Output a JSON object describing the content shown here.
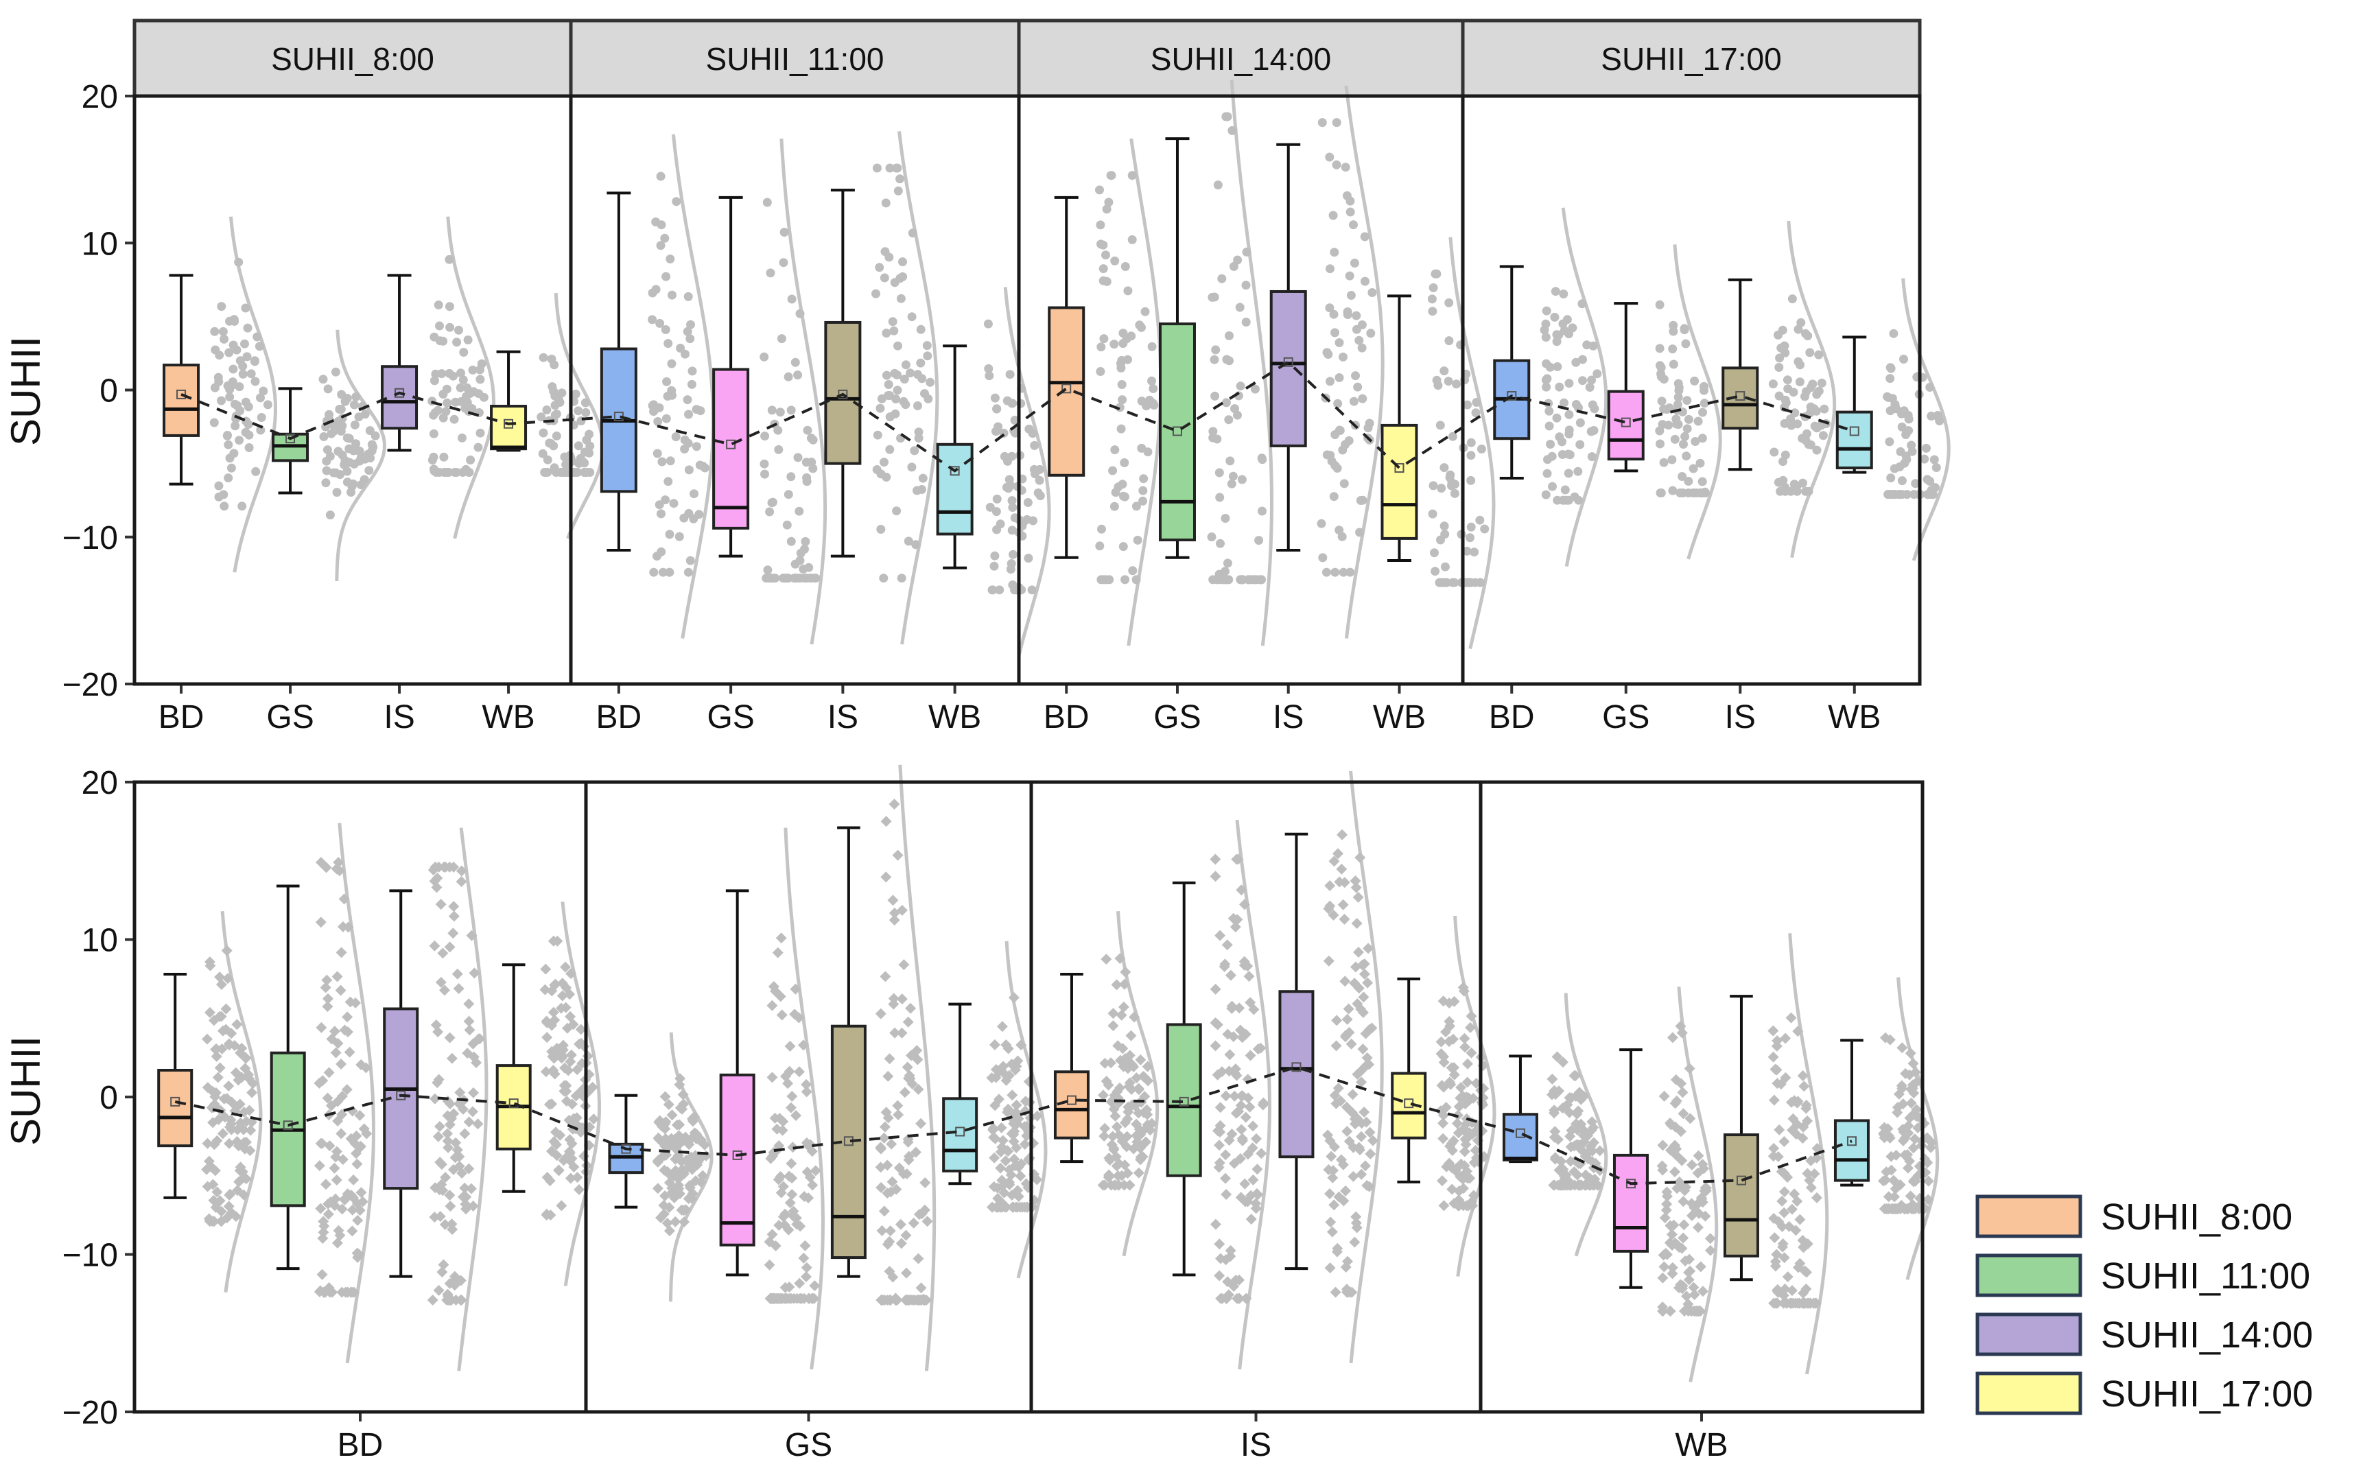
{
  "chart_data": [
    {
      "type": "box",
      "title": "",
      "ylabel": "SUHII",
      "ylim": [
        -20,
        20
      ],
      "yticks": [
        "20",
        "10",
        "0",
        "−10",
        "−20"
      ],
      "ytick_values": [
        20,
        10,
        0,
        -10,
        -20
      ],
      "panels": [
        {
          "label": "SUHII_8:00",
          "categories": [
            "BD",
            "GS",
            "IS",
            "WB"
          ],
          "boxes": [
            {
              "category": "BD",
              "min": -6.4,
              "q1": -3.1,
              "median": -1.3,
              "q3": 1.7,
              "max": 7.8,
              "mean": -0.3,
              "color": "#f9c49a"
            },
            {
              "category": "GS",
              "min": -7.0,
              "q1": -4.8,
              "median": -3.8,
              "q3": -3.0,
              "max": 0.1,
              "mean": -3.3,
              "color": "#98d598"
            },
            {
              "category": "IS",
              "min": -4.1,
              "q1": -2.6,
              "median": -0.8,
              "q3": 1.6,
              "max": 7.8,
              "mean": -0.2,
              "color": "#b4a5d6"
            },
            {
              "category": "WB",
              "min": -4.1,
              "q1": -4.0,
              "median": -3.9,
              "q3": -1.1,
              "max": 2.6,
              "mean": -2.3,
              "color": "#fffa9a"
            }
          ]
        },
        {
          "label": "SUHII_11:00",
          "categories": [
            "BD",
            "GS",
            "IS",
            "WB"
          ],
          "boxes": [
            {
              "category": "BD",
              "min": -10.9,
              "q1": -6.9,
              "median": -2.1,
              "q3": 2.8,
              "max": 13.4,
              "mean": -1.8,
              "color": "#8ab2ee"
            },
            {
              "category": "GS",
              "min": -11.3,
              "q1": -9.4,
              "median": -8.0,
              "q3": 1.4,
              "max": 13.1,
              "mean": -3.7,
              "color": "#f9a5f4"
            },
            {
              "category": "IS",
              "min": -11.3,
              "q1": -5.0,
              "median": -0.6,
              "q3": 4.6,
              "max": 13.6,
              "mean": -0.3,
              "color": "#b7b08a"
            },
            {
              "category": "WB",
              "min": -12.1,
              "q1": -9.8,
              "median": -8.3,
              "q3": -3.7,
              "max": 3.0,
              "mean": -5.5,
              "color": "#a8e3ea"
            }
          ]
        },
        {
          "label": "SUHII_14:00",
          "categories": [
            "BD",
            "GS",
            "IS",
            "WB"
          ],
          "boxes": [
            {
              "category": "BD",
              "min": -11.4,
              "q1": -5.8,
              "median": 0.5,
              "q3": 5.6,
              "max": 13.1,
              "mean": 0.1,
              "color": "#f9c49a"
            },
            {
              "category": "GS",
              "min": -11.4,
              "q1": -10.2,
              "median": -7.6,
              "q3": 4.5,
              "max": 17.1,
              "mean": -2.8,
              "color": "#98d598"
            },
            {
              "category": "IS",
              "min": -10.9,
              "q1": -3.8,
              "median": 1.8,
              "q3": 6.7,
              "max": 16.7,
              "mean": 1.9,
              "color": "#b4a5d6"
            },
            {
              "category": "WB",
              "min": -11.6,
              "q1": -10.1,
              "median": -7.8,
              "q3": -2.4,
              "max": 6.4,
              "mean": -5.3,
              "color": "#fffa9a"
            }
          ]
        },
        {
          "label": "SUHII_17:00",
          "categories": [
            "BD",
            "GS",
            "IS",
            "WB"
          ],
          "boxes": [
            {
              "category": "BD",
              "min": -6.0,
              "q1": -3.3,
              "median": -0.6,
              "q3": 2.0,
              "max": 8.4,
              "mean": -0.4,
              "color": "#8ab2ee"
            },
            {
              "category": "GS",
              "min": -5.5,
              "q1": -4.7,
              "median": -3.4,
              "q3": -0.1,
              "max": 5.9,
              "mean": -2.2,
              "color": "#f9a5f4"
            },
            {
              "category": "IS",
              "min": -5.4,
              "q1": -2.6,
              "median": -1.0,
              "q3": 1.5,
              "max": 7.5,
              "mean": -0.4,
              "color": "#b7b08a"
            },
            {
              "category": "WB",
              "min": -5.6,
              "q1": -5.3,
              "median": -4.0,
              "q3": -1.5,
              "max": 3.6,
              "mean": -2.8,
              "color": "#a8e3ea"
            }
          ]
        }
      ]
    },
    {
      "type": "box",
      "title": "",
      "ylabel": "SUHII",
      "ylim": [
        -20,
        20
      ],
      "yticks": [
        "20",
        "10",
        "0",
        "−10",
        "−20"
      ],
      "ytick_values": [
        20,
        10,
        0,
        -10,
        -20
      ],
      "panels": [
        {
          "label": "BD",
          "boxes": [
            {
              "series": "SUHII_8:00",
              "min": -6.4,
              "q1": -3.1,
              "median": -1.3,
              "q3": 1.7,
              "max": 7.8,
              "mean": -0.3,
              "color": "#f9c49a"
            },
            {
              "series": "SUHII_11:00",
              "min": -10.9,
              "q1": -6.9,
              "median": -2.1,
              "q3": 2.8,
              "max": 13.4,
              "mean": -1.8,
              "color": "#98d598"
            },
            {
              "series": "SUHII_14:00",
              "min": -11.4,
              "q1": -5.8,
              "median": 0.5,
              "q3": 5.6,
              "max": 13.1,
              "mean": 0.1,
              "color": "#b4a5d6"
            },
            {
              "series": "SUHII_17:00",
              "min": -6.0,
              "q1": -3.3,
              "median": -0.6,
              "q3": 2.0,
              "max": 8.4,
              "mean": -0.4,
              "color": "#fffa9a"
            }
          ]
        },
        {
          "label": "GS",
          "boxes": [
            {
              "series": "SUHII_8:00",
              "min": -7.0,
              "q1": -4.8,
              "median": -3.8,
              "q3": -3.0,
              "max": 0.1,
              "mean": -3.3,
              "color": "#8ab2ee"
            },
            {
              "series": "SUHII_11:00",
              "min": -11.3,
              "q1": -9.4,
              "median": -8.0,
              "q3": 1.4,
              "max": 13.1,
              "mean": -3.7,
              "color": "#f9a5f4"
            },
            {
              "series": "SUHII_14:00",
              "min": -11.4,
              "q1": -10.2,
              "median": -7.6,
              "q3": 4.5,
              "max": 17.1,
              "mean": -2.8,
              "color": "#b7b08a"
            },
            {
              "series": "SUHII_17:00",
              "min": -5.5,
              "q1": -4.7,
              "median": -3.4,
              "q3": -0.1,
              "max": 5.9,
              "mean": -2.2,
              "color": "#a8e3ea"
            }
          ]
        },
        {
          "label": "IS",
          "boxes": [
            {
              "series": "SUHII_8:00",
              "min": -4.1,
              "q1": -2.6,
              "median": -0.8,
              "q3": 1.6,
              "max": 7.8,
              "mean": -0.2,
              "color": "#f9c49a"
            },
            {
              "series": "SUHII_11:00",
              "min": -11.3,
              "q1": -5.0,
              "median": -0.6,
              "q3": 4.6,
              "max": 13.6,
              "mean": -0.3,
              "color": "#98d598"
            },
            {
              "series": "SUHII_14:00",
              "min": -10.9,
              "q1": -3.8,
              "median": 1.8,
              "q3": 6.7,
              "max": 16.7,
              "mean": 1.9,
              "color": "#b4a5d6"
            },
            {
              "series": "SUHII_17:00",
              "min": -5.4,
              "q1": -2.6,
              "median": -1.0,
              "q3": 1.5,
              "max": 7.5,
              "mean": -0.4,
              "color": "#fffa9a"
            }
          ]
        },
        {
          "label": "WB",
          "boxes": [
            {
              "series": "SUHII_8:00",
              "min": -4.1,
              "q1": -4.0,
              "median": -3.9,
              "q3": -1.1,
              "max": 2.6,
              "mean": -2.3,
              "color": "#8ab2ee"
            },
            {
              "series": "SUHII_11:00",
              "min": -12.1,
              "q1": -9.8,
              "median": -8.3,
              "q3": -3.7,
              "max": 3.0,
              "mean": -5.5,
              "color": "#f9a5f4"
            },
            {
              "series": "SUHII_14:00",
              "min": -11.6,
              "q1": -10.1,
              "median": -7.8,
              "q3": -2.4,
              "max": 6.4,
              "mean": -5.3,
              "color": "#b7b08a"
            },
            {
              "series": "SUHII_17:00",
              "min": -5.6,
              "q1": -5.3,
              "median": -4.0,
              "q3": -1.5,
              "max": 3.6,
              "mean": -2.8,
              "color": "#a8e3ea"
            }
          ]
        }
      ]
    }
  ],
  "legend": {
    "items": [
      {
        "label": "SUHII_8:00",
        "color": "#f9c49a"
      },
      {
        "label": "SUHII_11:00",
        "color": "#98d598"
      },
      {
        "label": "SUHII_14:00",
        "color": "#b4a5d6"
      },
      {
        "label": "SUHII_17:00",
        "color": "#fffa9a"
      }
    ]
  },
  "colors": {
    "point": "#bdbdbd",
    "density_curve": "#c4c4c4",
    "strip_header": "#d9d9d9",
    "frame": "#333333",
    "legend_border": "#2b3a52"
  }
}
